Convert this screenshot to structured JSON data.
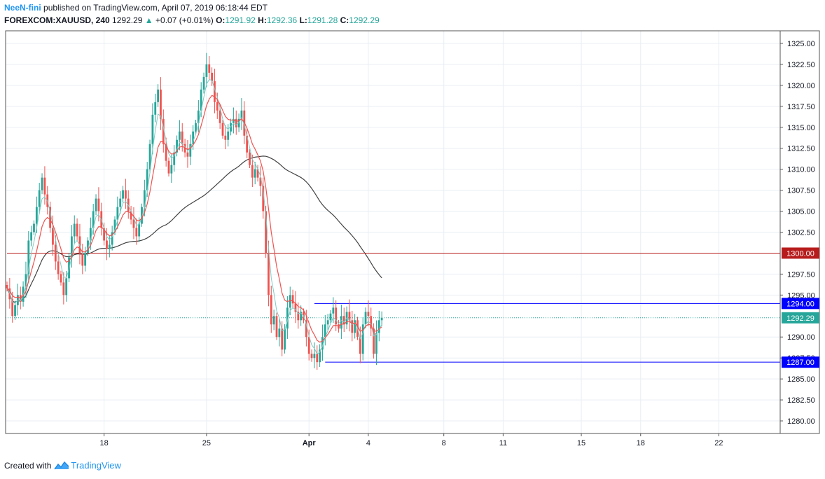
{
  "header": {
    "author": "NeeN-fini",
    "published_text": "published on TradingView.com, April 07, 2019 06:18:44 EDT",
    "symbol": "FOREXCOM:XAUUSD, 240",
    "last_price": "1292.29",
    "change": "+0.07 (+0.01%)",
    "o_label": "O:",
    "o_value": "1291.92",
    "h_label": "H:",
    "h_value": "1292.36",
    "l_label": "L:",
    "l_value": "1291.28",
    "c_label": "C:",
    "c_value": "1292.29"
  },
  "footer": {
    "created_with": "Created with",
    "brand": "TradingView"
  },
  "colors": {
    "up": "#26a69a",
    "down": "#ef5350",
    "ema_fast": "#ef5350",
    "ema_slow": "#80cbc4",
    "sma_long": "#424242",
    "res_line": "#b71c1c",
    "hlines": "#0000ff",
    "grid": "#e9eef3",
    "axis": "#555555"
  },
  "chart_data": {
    "type": "candlestick",
    "ylim": [
      1278.5,
      1326.5
    ],
    "y_ticks": [
      "1325.00",
      "1322.50",
      "1320.00",
      "1317.50",
      "1315.00",
      "1312.50",
      "1310.00",
      "1307.50",
      "1305.00",
      "1302.50",
      "1297.50",
      "1295.00",
      "1290.00",
      "1287.50",
      "1285.00",
      "1282.50",
      "1280.00"
    ],
    "x_ticks": [
      {
        "label": "18",
        "bar": 36
      },
      {
        "label": "25",
        "bar": 74
      },
      {
        "label": "Apr",
        "bar": 112
      },
      {
        "label": "4",
        "bar": 134
      },
      {
        "label": "8",
        "bar": 162
      },
      {
        "label": "11",
        "bar": 184
      },
      {
        "label": "15",
        "bar": 213
      },
      {
        "label": "18",
        "bar": 235
      },
      {
        "label": "22",
        "bar": 264
      }
    ],
    "closes": [
      1295.8,
      1294.5,
      1292.5,
      1293.8,
      1295.0,
      1294.2,
      1296.0,
      1297.5,
      1301.5,
      1302.5,
      1303.5,
      1305.5,
      1307.5,
      1309.0,
      1307.0,
      1305.5,
      1303.0,
      1301.0,
      1299.0,
      1297.5,
      1296.5,
      1295.0,
      1297.0,
      1299.5,
      1302.0,
      1303.5,
      1302.0,
      1300.0,
      1298.5,
      1300.0,
      1301.5,
      1303.0,
      1305.0,
      1306.5,
      1305.0,
      1303.0,
      1301.5,
      1300.5,
      1301.0,
      1302.5,
      1304.0,
      1305.5,
      1306.5,
      1307.5,
      1306.5,
      1305.0,
      1304.0,
      1303.0,
      1302.0,
      1303.5,
      1305.5,
      1307.5,
      1310.0,
      1313.0,
      1316.5,
      1318.0,
      1319.5,
      1316.0,
      1313.0,
      1311.0,
      1309.5,
      1310.5,
      1312.0,
      1313.5,
      1314.5,
      1313.0,
      1312.0,
      1311.5,
      1313.0,
      1314.5,
      1315.5,
      1317.0,
      1319.5,
      1321.0,
      1322.5,
      1321.5,
      1320.5,
      1318.0,
      1317.0,
      1315.5,
      1314.0,
      1313.5,
      1314.5,
      1315.5,
      1316.0,
      1315.0,
      1316.0,
      1317.0,
      1314.0,
      1312.0,
      1310.5,
      1309.0,
      1310.0,
      1309.0,
      1308.0,
      1305.0,
      1300.0,
      1295.0,
      1291.5,
      1292.5,
      1290.0,
      1291.0,
      1288.5,
      1291.0,
      1293.5,
      1295.0,
      1294.0,
      1293.0,
      1292.0,
      1293.0,
      1292.0,
      1290.0,
      1288.0,
      1287.5,
      1288.0,
      1287.0,
      1288.5,
      1290.0,
      1291.5,
      1292.0,
      1292.8,
      1293.5,
      1291.5,
      1291.0,
      1292.5,
      1291.5,
      1293.0,
      1292.0,
      1290.5,
      1292.0,
      1290.0,
      1288.0,
      1291.5,
      1293.0,
      1292.5,
      1291.0,
      1288.0,
      1290.5,
      1292.0,
      1292.29
    ],
    "hlines": [
      {
        "value": 1300.0,
        "label": "1300.00",
        "color": "#b71c1c",
        "from_bar": 0
      },
      {
        "value": 1294.0,
        "label": "1294.00",
        "color": "#0000ff",
        "from_bar": 114
      },
      {
        "value": 1287.0,
        "label": "1287.00",
        "color": "#0000ff",
        "from_bar": 118
      }
    ],
    "last_price": {
      "value": 1292.29,
      "label": "1292.29",
      "color": "#26a69a"
    }
  }
}
